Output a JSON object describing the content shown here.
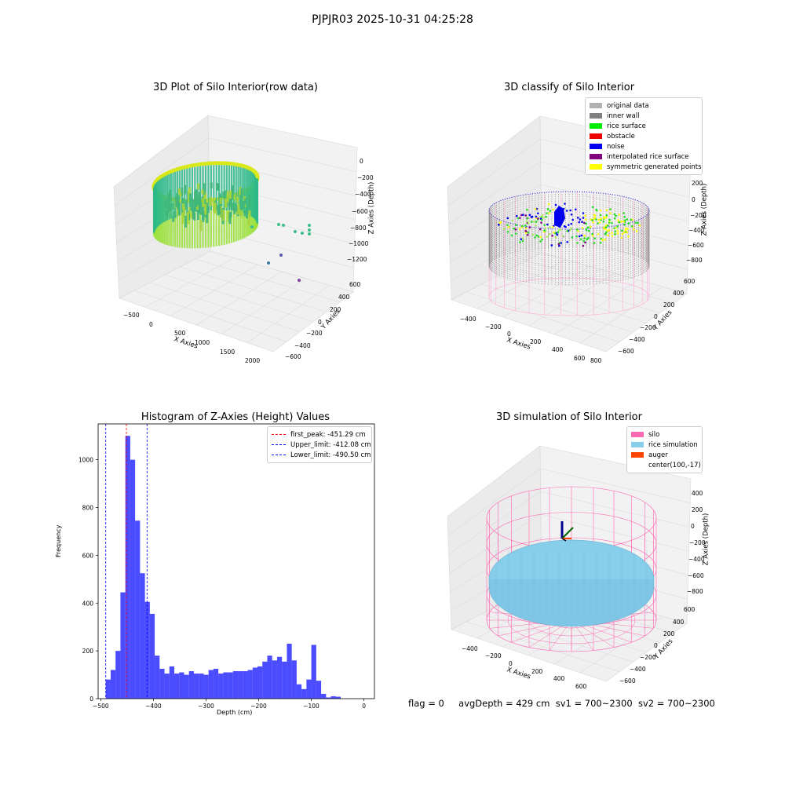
{
  "figure": {
    "suptitle": "PJPJR03 2025-10-31 04:25:28",
    "footer": {
      "flag": "flag = 0",
      "avg_depth": "avgDepth = 429 cm",
      "sv1": "sv1 = 700~2300",
      "sv2": "sv2 = 700~2300"
    }
  },
  "panels": {
    "raw": {
      "title": "3D Plot of Silo Interior(row data)",
      "xlabel": "X Axies",
      "ylabel": "Y Axies",
      "zlabel": "Z Axies (Depth)",
      "xticks": [
        "−500",
        "0",
        "500",
        "1000",
        "1500",
        "2000"
      ],
      "yticks": [
        "600",
        "400",
        "200",
        "0",
        "−200",
        "−400",
        "−600"
      ],
      "zticks": [
        "0",
        "−200",
        "−400",
        "−600",
        "−800",
        "−1000",
        "−1200"
      ]
    },
    "classify": {
      "title": "3D classify of Silo Interior",
      "xlabel": "X Axies",
      "ylabel": "Y Axies",
      "zlabel": "Z Axies (Depth)",
      "xticks": [
        "−400",
        "−200",
        "0",
        "200",
        "400",
        "600",
        "800"
      ],
      "yticks": [
        "600",
        "400",
        "200",
        "0",
        "−200",
        "−400",
        "−600"
      ],
      "zticks": [
        "200",
        "0",
        "−200",
        "−400",
        "−600",
        "−800"
      ],
      "legend": [
        {
          "label": "original data",
          "color": "#b0b0b0"
        },
        {
          "label": "inner wall",
          "color": "#808080"
        },
        {
          "label": "rice surface",
          "color": "#00ee00"
        },
        {
          "label": "obstacle",
          "color": "#ee0000"
        },
        {
          "label": "noise",
          "color": "#0000ee"
        },
        {
          "label": "interpolated rice surface",
          "color": "#800080"
        },
        {
          "label": "symmetric generated points",
          "color": "#ffff00"
        }
      ]
    },
    "simulation": {
      "title": "3D simulation of Silo Interior",
      "xlabel": "X Axies",
      "ylabel": "Y Axies",
      "zlabel": "Z Axies (Depth)",
      "xticks": [
        "−400",
        "−200",
        "0",
        "200",
        "400",
        "600"
      ],
      "yticks": [
        "600",
        "400",
        "200",
        "0",
        "−200",
        "−400",
        "−600"
      ],
      "zticks": [
        "400",
        "200",
        "0",
        "−200",
        "−400",
        "−600",
        "−800"
      ],
      "legend": [
        {
          "label": "silo",
          "color": "#ff69b4"
        },
        {
          "label": "rice simulation",
          "color": "#87ceeb"
        },
        {
          "label": "auger",
          "color": "#ff4500"
        },
        {
          "label": "center(100,-17)",
          "color": "transparent"
        }
      ]
    }
  },
  "chart_data": {
    "type": "bar",
    "title": "Histogram of Z-Axies (Height) Values",
    "xlabel": "Depth (cm)",
    "ylabel": "Frequency",
    "xlim": [
      -505,
      20
    ],
    "ylim": [
      0,
      1150
    ],
    "xticks": [
      -500,
      -400,
      -300,
      -200,
      -100,
      0
    ],
    "xtick_labels": [
      "−500",
      "−400",
      "−300",
      "−200",
      "−100",
      "0"
    ],
    "yticks": [
      0,
      200,
      400,
      600,
      800,
      1000
    ],
    "bin_width": 9.3,
    "bins_start": [
      -490.5,
      -481.2,
      -471.9,
      -462.6,
      -453.3,
      -444.0,
      -434.7,
      -425.4,
      -416.1,
      -406.8,
      -397.5,
      -388.2,
      -378.9,
      -369.6,
      -360.3,
      -351.0,
      -341.7,
      -332.4,
      -323.1,
      -313.8,
      -304.5,
      -295.2,
      -285.9,
      -276.6,
      -267.3,
      -258.0,
      -248.7,
      -239.4,
      -230.1,
      -220.8,
      -211.5,
      -202.2,
      -192.9,
      -183.6,
      -174.3,
      -165.0,
      -155.7,
      -146.4,
      -137.1,
      -127.8,
      -118.5,
      -109.2,
      -99.9,
      -90.6,
      -81.3,
      -72.0,
      -62.7,
      -53.4,
      -44.1,
      -34.8,
      -25.5,
      -16.2,
      -6.9
    ],
    "counts": [
      80,
      120,
      200,
      445,
      1100,
      1000,
      745,
      525,
      405,
      355,
      180,
      125,
      105,
      135,
      105,
      110,
      100,
      115,
      105,
      105,
      100,
      120,
      125,
      105,
      110,
      110,
      115,
      115,
      115,
      120,
      130,
      135,
      155,
      180,
      160,
      175,
      155,
      230,
      160,
      60,
      40,
      80,
      225,
      75,
      20,
      5,
      10,
      8,
      0,
      0,
      0,
      0,
      0
    ],
    "bar_color": "#0000ff",
    "bar_opacity": 0.7,
    "reference_lines": [
      {
        "name": "first_peak",
        "value": -451.29,
        "label": "first_peak: -451.29 cm",
        "color": "#ff0000"
      },
      {
        "name": "Upper_limit",
        "value": -412.08,
        "label": "Upper_limit: -412.08 cm",
        "color": "#0000ff"
      },
      {
        "name": "Lower_limit",
        "value": -490.5,
        "label": "Lower_limit: -490.50 cm",
        "color": "#0000ff"
      }
    ],
    "legend_position": "upper right",
    "grid": false
  }
}
